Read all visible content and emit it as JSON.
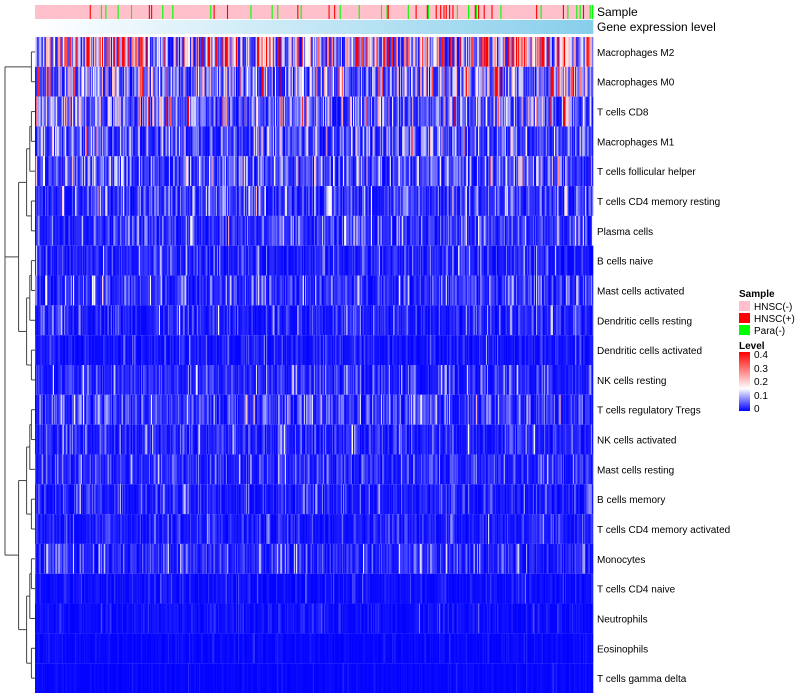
{
  "chart_data": {
    "type": "heatmap",
    "annotations": [
      {
        "name": "Sample",
        "key": "sample"
      },
      {
        "name": "Gene expression level",
        "key": "gene"
      }
    ],
    "rows": [
      "Macrophages M2",
      "Macrophages M0",
      "T cells CD8",
      "Macrophages M1",
      "T cells follicular helper",
      "T cells CD4 memory resting",
      "Plasma cells",
      "B cells naive",
      "Mast cells activated",
      "Dendritic cells resting",
      "Dendritic cells activated",
      "NK cells resting",
      "T cells regulatory  Tregs",
      "NK cells activated",
      "Mast cells resting",
      "B cells memory",
      "T cells CD4 memory activated",
      "Monocytes",
      "T cells CD4 naive",
      "Neutrophils",
      "Eosinophils",
      "T cells gamma delta"
    ],
    "row_mean_level": [
      0.22,
      0.12,
      0.1,
      0.07,
      0.07,
      0.05,
      0.045,
      0.03,
      0.045,
      0.03,
      0.02,
      0.035,
      0.045,
      0.035,
      0.035,
      0.025,
      0.025,
      0.035,
      0.012,
      0.012,
      0.006,
      0.005
    ],
    "n_samples": 500,
    "sample_legend": {
      "title": "Sample",
      "items": [
        {
          "label": "HNSC(-)",
          "color": "#FFC0CB"
        },
        {
          "label": "HNSC(+)",
          "color": "#FF0000"
        },
        {
          "label": "Para(-)",
          "color": "#00FF00"
        }
      ]
    },
    "level_legend": {
      "title": "Level",
      "ticks": [
        "0.4",
        "0.3",
        "0.2",
        "0.1",
        "0"
      ],
      "range": [
        0,
        0.4
      ],
      "colors": [
        "#0000FF",
        "#FFFFFF",
        "#FF0000"
      ]
    },
    "gene_level_colors": [
      "#FFFFFF",
      "#87CEEB"
    ]
  }
}
